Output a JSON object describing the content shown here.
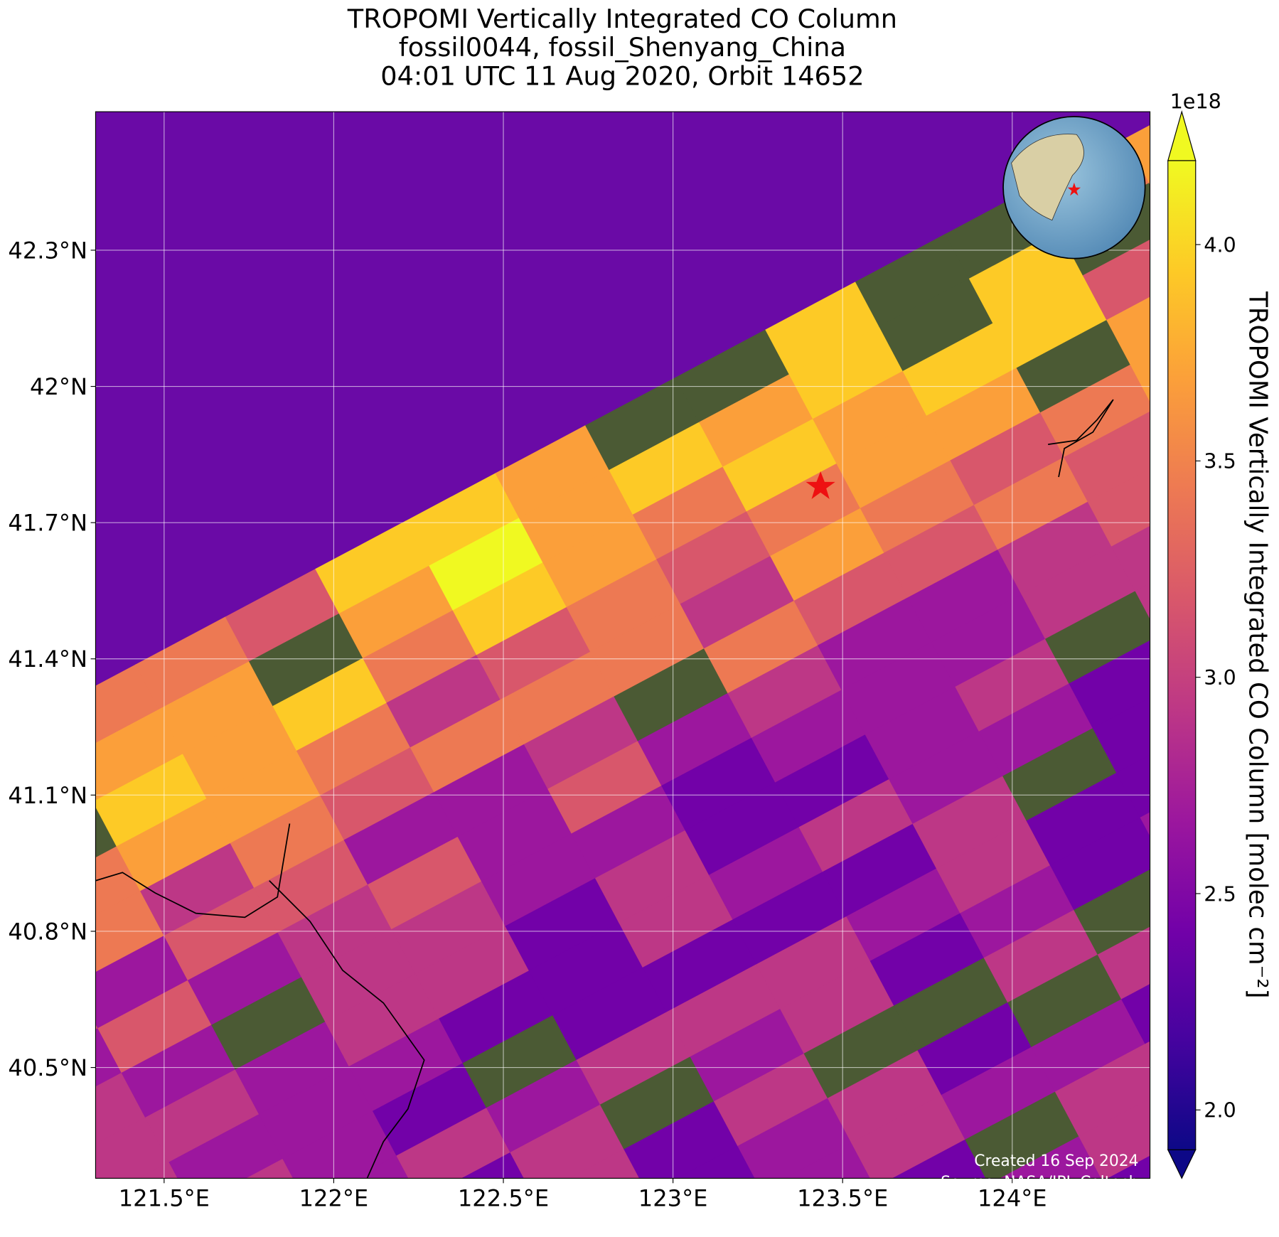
{
  "chart_data": {
    "type": "map",
    "title": [
      "TROPOMI Vertically Integrated CO Column",
      "fossil0044, fossil_Shenyang_China",
      "04:01 UTC 11 Aug 2020, Orbit 14652"
    ],
    "xlim": [
      121.298,
      124.406
    ],
    "ylim": [
      40.256,
      42.605
    ],
    "xticks": [
      {
        "value": 121.5,
        "label": "121.5°E"
      },
      {
        "value": 122,
        "label": "122°E"
      },
      {
        "value": 122.5,
        "label": "122.5°E"
      },
      {
        "value": 123,
        "label": "123°E"
      },
      {
        "value": 123.5,
        "label": "123.5°E"
      },
      {
        "value": 124,
        "label": "124°E"
      }
    ],
    "yticks": [
      {
        "value": 40.5,
        "label": "40.5°N"
      },
      {
        "value": 40.8,
        "label": "40.8°N"
      },
      {
        "value": 41.1,
        "label": "41.1°N"
      },
      {
        "value": 41.4,
        "label": "41.4°N"
      },
      {
        "value": 41.7,
        "label": "41.7°N"
      },
      {
        "value": 42,
        "label": "42°N"
      },
      {
        "value": 42.3,
        "label": "42.3°N"
      }
    ],
    "grid": true,
    "colorbar": {
      "label": "TROPOMI Vertically Integrated CO Column [molec cm⁻²]",
      "exponent": "1e18",
      "lim": [
        1.908,
        4.194
      ],
      "ticks": [
        {
          "value": 2,
          "label": "2.0"
        },
        {
          "value": 2.5,
          "label": "2.5"
        },
        {
          "value": 3,
          "label": "3.0"
        },
        {
          "value": 3.5,
          "label": "3.5"
        },
        {
          "value": 4,
          "label": "4.0"
        }
      ],
      "colormap": [
        "#0d0887",
        "#46039f",
        "#7201a8",
        "#9c179e",
        "#bd3786",
        "#d8576b",
        "#ed7953",
        "#fb9f3a",
        "#fdca26",
        "#f0f921"
      ]
    },
    "credits": [
      "Created 16 Sep 2024",
      "Source: NASA/JPL-Caltech"
    ]
  }
}
